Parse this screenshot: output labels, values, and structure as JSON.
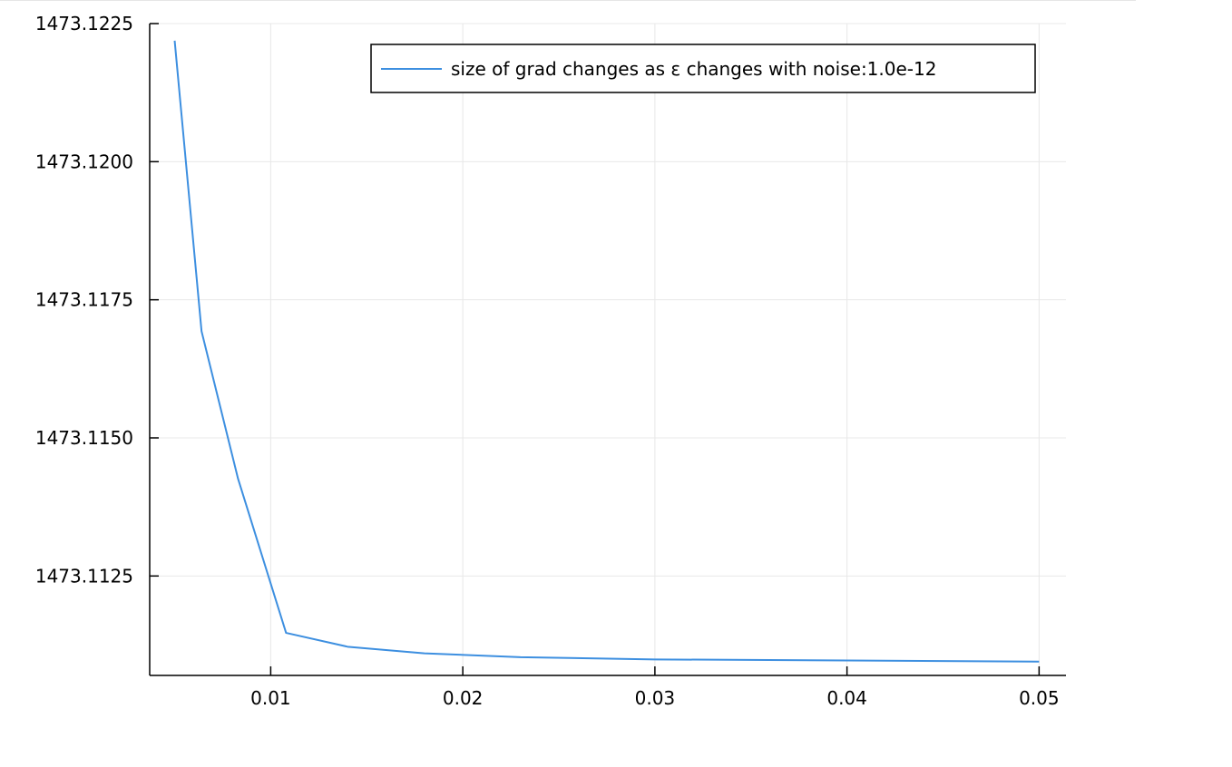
{
  "chart_data": {
    "type": "line",
    "title": "",
    "xlabel": "",
    "ylabel": "",
    "xlim": [
      0.0037,
      0.0514
    ],
    "ylim": [
      1473.1107,
      1473.1225
    ],
    "x_ticks": [
      0.01,
      0.02,
      0.03,
      0.04,
      0.05
    ],
    "x_tick_labels": [
      "0.01",
      "0.02",
      "0.03",
      "0.04",
      "0.05"
    ],
    "y_ticks": [
      1473.1125,
      1473.115,
      1473.1175,
      1473.12,
      1473.1225
    ],
    "y_tick_labels": [
      "1473.1125",
      "1473.1150",
      "1473.1175",
      "1473.1200",
      "1473.1225"
    ],
    "grid": true,
    "legend": "top-right",
    "series": [
      {
        "name": "size of grad changes as ε changes with noise:1.0e-12",
        "color": "#3d8fe0",
        "x": [
          0.005,
          0.0064,
          0.0083,
          0.0108,
          0.014,
          0.018,
          0.023,
          0.03,
          0.04,
          0.05
        ],
        "y": [
          1473.12219,
          1473.11693,
          1473.11426,
          1473.11147,
          1473.11122,
          1473.1111,
          1473.11103,
          1473.11099,
          1473.11097,
          1473.11095
        ]
      }
    ]
  }
}
